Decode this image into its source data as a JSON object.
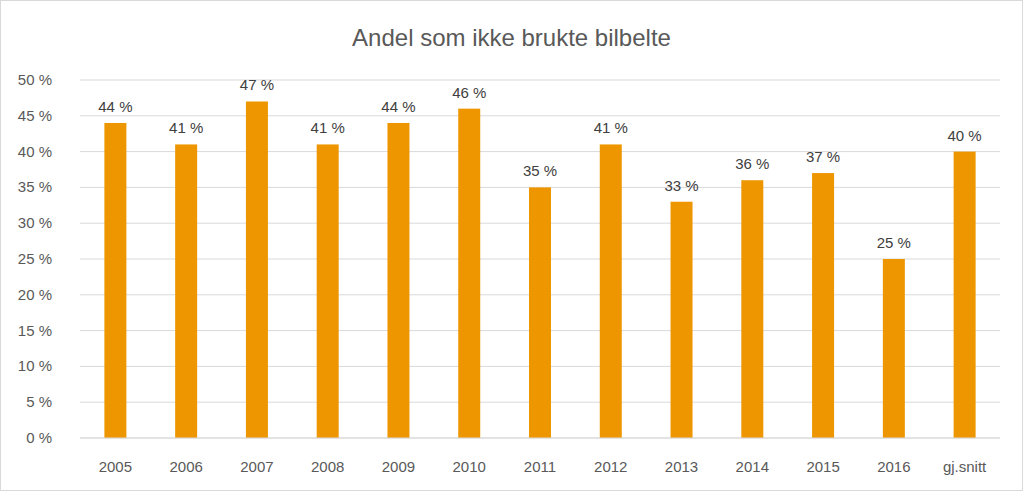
{
  "chart_data": {
    "type": "bar",
    "title": "Andel som ikke brukte bilbelte",
    "categories": [
      "2005",
      "2006",
      "2007",
      "2008",
      "2009",
      "2010",
      "2011",
      "2012",
      "2013",
      "2014",
      "2015",
      "2016",
      "gj.snitt"
    ],
    "values": [
      44,
      41,
      47,
      41,
      44,
      46,
      35,
      41,
      33,
      36,
      37,
      25,
      40
    ],
    "value_labels": [
      "44 %",
      "41 %",
      "47 %",
      "41 %",
      "44 %",
      "46 %",
      "35 %",
      "41 %",
      "33 %",
      "36 %",
      "37 %",
      "25 %",
      "40 %"
    ],
    "color": "#ed9600",
    "ylim": [
      0,
      50
    ],
    "yticks": [
      {
        "value": 0,
        "label": "0 %"
      },
      {
        "value": 5,
        "label": "5 %"
      },
      {
        "value": 10,
        "label": "10 %"
      },
      {
        "value": 15,
        "label": "15 %"
      },
      {
        "value": 20,
        "label": "20 %"
      },
      {
        "value": 25,
        "label": "25 %"
      },
      {
        "value": 30,
        "label": "30 %"
      },
      {
        "value": 35,
        "label": "35 %"
      },
      {
        "value": 40,
        "label": "40 %"
      },
      {
        "value": 45,
        "label": "45 %"
      },
      {
        "value": 50,
        "label": "50 %"
      }
    ],
    "grid": true,
    "data_labels": true
  }
}
